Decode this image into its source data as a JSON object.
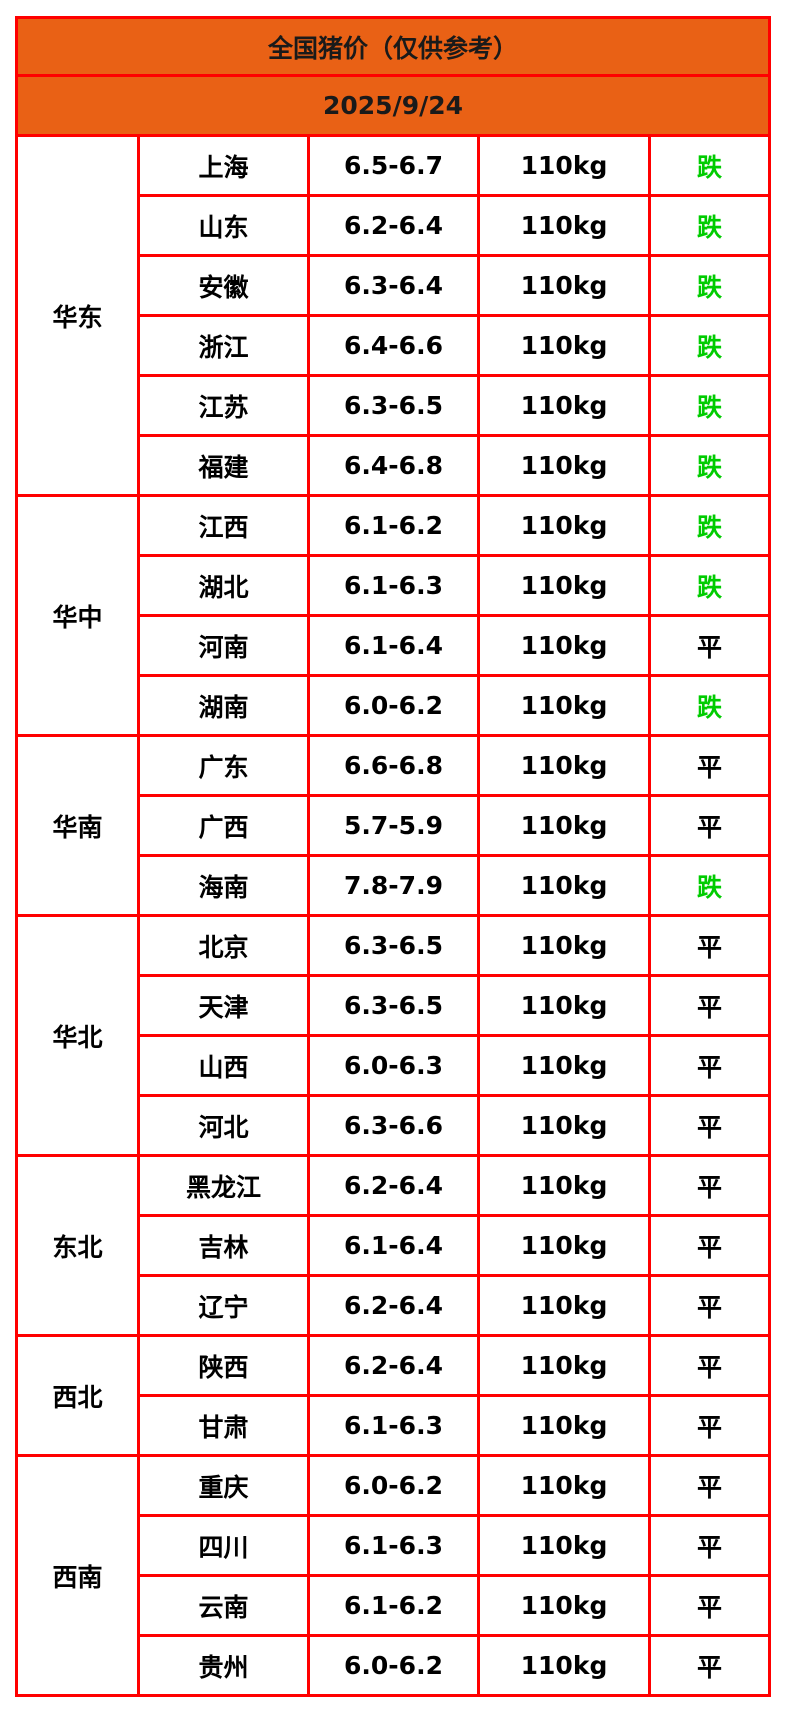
{
  "title": "全国猪价（仅供参考）",
  "date": "2025/9/24",
  "colors": {
    "header_bg": "#e96115",
    "border": "#ff0000",
    "down": "#00cc00",
    "flat": "#000000"
  },
  "regions": [
    {
      "name": "华东",
      "rows": [
        {
          "province": "上海",
          "price": "6.5-6.7",
          "weight": "110kg",
          "trend": "跌"
        },
        {
          "province": "山东",
          "price": "6.2-6.4",
          "weight": "110kg",
          "trend": "跌"
        },
        {
          "province": "安徽",
          "price": "6.3-6.4",
          "weight": "110kg",
          "trend": "跌"
        },
        {
          "province": "浙江",
          "price": "6.4-6.6",
          "weight": "110kg",
          "trend": "跌"
        },
        {
          "province": "江苏",
          "price": "6.3-6.5",
          "weight": "110kg",
          "trend": "跌"
        },
        {
          "province": "福建",
          "price": "6.4-6.8",
          "weight": "110kg",
          "trend": "跌"
        }
      ]
    },
    {
      "name": "华中",
      "rows": [
        {
          "province": "江西",
          "price": "6.1-6.2",
          "weight": "110kg",
          "trend": "跌"
        },
        {
          "province": "湖北",
          "price": "6.1-6.3",
          "weight": "110kg",
          "trend": "跌"
        },
        {
          "province": "河南",
          "price": "6.1-6.4",
          "weight": "110kg",
          "trend": "平"
        },
        {
          "province": "湖南",
          "price": "6.0-6.2",
          "weight": "110kg",
          "trend": "跌"
        }
      ]
    },
    {
      "name": "华南",
      "rows": [
        {
          "province": "广东",
          "price": "6.6-6.8",
          "weight": "110kg",
          "trend": "平"
        },
        {
          "province": "广西",
          "price": "5.7-5.9",
          "weight": "110kg",
          "trend": "平"
        },
        {
          "province": "海南",
          "price": "7.8-7.9",
          "weight": "110kg",
          "trend": "跌"
        }
      ]
    },
    {
      "name": "华北",
      "rows": [
        {
          "province": "北京",
          "price": "6.3-6.5",
          "weight": "110kg",
          "trend": "平"
        },
        {
          "province": "天津",
          "price": "6.3-6.5",
          "weight": "110kg",
          "trend": "平"
        },
        {
          "province": "山西",
          "price": "6.0-6.3",
          "weight": "110kg",
          "trend": "平"
        },
        {
          "province": "河北",
          "price": "6.3-6.6",
          "weight": "110kg",
          "trend": "平"
        }
      ]
    },
    {
      "name": "东北",
      "rows": [
        {
          "province": "黑龙江",
          "price": "6.2-6.4",
          "weight": "110kg",
          "trend": "平"
        },
        {
          "province": "吉林",
          "price": "6.1-6.4",
          "weight": "110kg",
          "trend": "平"
        },
        {
          "province": "辽宁",
          "price": "6.2-6.4",
          "weight": "110kg",
          "trend": "平"
        }
      ]
    },
    {
      "name": "西北",
      "rows": [
        {
          "province": "陕西",
          "price": "6.2-6.4",
          "weight": "110kg",
          "trend": "平"
        },
        {
          "province": "甘肃",
          "price": "6.1-6.3",
          "weight": "110kg",
          "trend": "平"
        }
      ]
    },
    {
      "name": "西南",
      "rows": [
        {
          "province": "重庆",
          "price": "6.0-6.2",
          "weight": "110kg",
          "trend": "平"
        },
        {
          "province": "四川",
          "price": "6.1-6.3",
          "weight": "110kg",
          "trend": "平"
        },
        {
          "province": "云南",
          "price": "6.1-6.2",
          "weight": "110kg",
          "trend": "平"
        },
        {
          "province": "贵州",
          "price": "6.0-6.2",
          "weight": "110kg",
          "trend": "平"
        }
      ]
    }
  ]
}
